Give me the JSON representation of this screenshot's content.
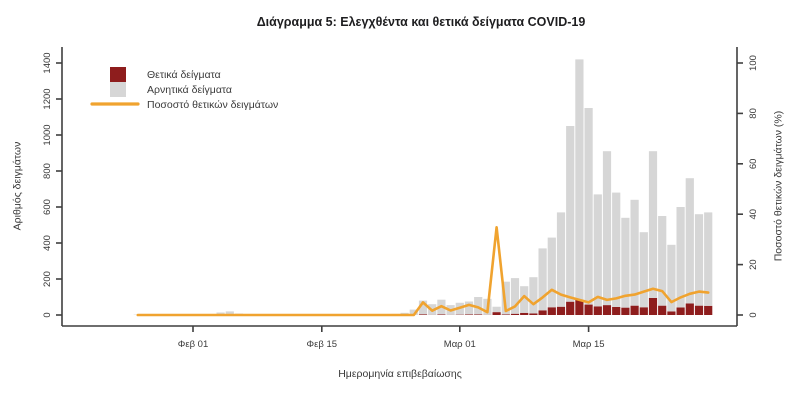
{
  "title": "Διάγραμμα 5: Ελεγχθέντα και θετικά δείγματα COVID-19",
  "colors": {
    "positive_bar": "#8e1d1d",
    "negative_bar": "#d6d6d6",
    "percent_line": "#f0a32f",
    "axis": "#3f3f3f",
    "text": "#3a3a3a",
    "title_text": "#1d1d1f",
    "background": "#ffffff"
  },
  "chart_data": {
    "type": "bar+line",
    "stacked": true,
    "grid": false,
    "legend_position": "top-left",
    "xlabel": "Ημερομηνία επιβεβαίωσης",
    "ylabel_left": "Αριθμός δειγμάτων",
    "ylabel_right": "Ποσοστό θετικών δειγμάτων (%)",
    "ylim_left": [
      0,
      1400
    ],
    "ylim_right": [
      0,
      100
    ],
    "yticks_left": [
      0,
      200,
      400,
      600,
      800,
      1000,
      1200,
      1400
    ],
    "yticks_right": [
      0,
      20,
      40,
      60,
      80,
      100
    ],
    "xticks": [
      "Φεβ 01",
      "Φεβ 15",
      "Μαρ 01",
      "Μαρ 15"
    ],
    "dates": [
      "Ιαν 26",
      "Ιαν 27",
      "Ιαν 28",
      "Ιαν 29",
      "Ιαν 30",
      "Ιαν 31",
      "Φεβ 01",
      "Φεβ 02",
      "Φεβ 03",
      "Φεβ 04",
      "Φεβ 05",
      "Φεβ 06",
      "Φεβ 07",
      "Φεβ 08",
      "Φεβ 09",
      "Φεβ 10",
      "Φεβ 11",
      "Φεβ 12",
      "Φεβ 13",
      "Φεβ 14",
      "Φεβ 15",
      "Φεβ 16",
      "Φεβ 17",
      "Φεβ 18",
      "Φεβ 19",
      "Φεβ 20",
      "Φεβ 21",
      "Φεβ 22",
      "Φεβ 23",
      "Φεβ 24",
      "Φεβ 25",
      "Φεβ 26",
      "Φεβ 27",
      "Φεβ 28",
      "Φεβ 29",
      "Μαρ 01",
      "Μαρ 02",
      "Μαρ 03",
      "Μαρ 04",
      "Μαρ 05",
      "Μαρ 06",
      "Μαρ 07",
      "Μαρ 08",
      "Μαρ 09",
      "Μαρ 10",
      "Μαρ 11",
      "Μαρ 12",
      "Μαρ 13",
      "Μαρ 14",
      "Μαρ 15",
      "Μαρ 16",
      "Μαρ 17",
      "Μαρ 18",
      "Μαρ 19",
      "Μαρ 20",
      "Μαρ 21",
      "Μαρ 22",
      "Μαρ 23",
      "Μαρ 24",
      "Μαρ 25",
      "Μαρ 26",
      "Μαρ 27",
      "Μαρ 28"
    ],
    "series": [
      {
        "name": "Θετικά δείγματα",
        "type": "bar",
        "axis": "left",
        "color": "#8e1d1d",
        "values": [
          0,
          0,
          0,
          0,
          0,
          0,
          0,
          0,
          0,
          0,
          0,
          0,
          0,
          0,
          0,
          0,
          0,
          0,
          0,
          0,
          0,
          0,
          0,
          0,
          0,
          0,
          0,
          0,
          0,
          0,
          0,
          4,
          1,
          3,
          1,
          2,
          3,
          3,
          1,
          16,
          3,
          7,
          12,
          9,
          26,
          43,
          46,
          74,
          85,
          58,
          48,
          55,
          45,
          41,
          52,
          43,
          95,
          52,
          20,
          42,
          64,
          52,
          51
        ]
      },
      {
        "name": "Αρνητικά δείγματα",
        "type": "bar",
        "axis": "left",
        "color": "#d6d6d6",
        "values": [
          2,
          2,
          3,
          3,
          2,
          3,
          3,
          2,
          3,
          14,
          20,
          8,
          3,
          2,
          3,
          3,
          2,
          3,
          3,
          2,
          3,
          3,
          2,
          3,
          3,
          2,
          3,
          5,
          6,
          12,
          30,
          76,
          59,
          82,
          54,
          66,
          72,
          97,
          89,
          30,
          182,
          198,
          148,
          201,
          344,
          387,
          524,
          976,
          1335,
          1092,
          622,
          855,
          635,
          499,
          588,
          417,
          815,
          498,
          370,
          558,
          696,
          508,
          519
        ]
      },
      {
        "name": "Ποσοστό θετικών δειγμάτων",
        "type": "line",
        "axis": "right",
        "color": "#f0a32f",
        "values": [
          0,
          0,
          0,
          0,
          0,
          0,
          0,
          0,
          0,
          0,
          0,
          0,
          0,
          0,
          0,
          0,
          0,
          0,
          0,
          0,
          0,
          0,
          0,
          0,
          0,
          0,
          0,
          0,
          0,
          0,
          0,
          5.0,
          1.7,
          3.5,
          1.8,
          2.9,
          4.0,
          3.0,
          1.1,
          34.8,
          1.6,
          3.4,
          7.5,
          4.3,
          7.0,
          10.0,
          8.1,
          7.0,
          6.0,
          5.0,
          7.2,
          6.0,
          6.6,
          7.6,
          8.1,
          9.3,
          10.4,
          9.5,
          5.1,
          7.0,
          8.4,
          9.3,
          8.9
        ]
      }
    ]
  }
}
